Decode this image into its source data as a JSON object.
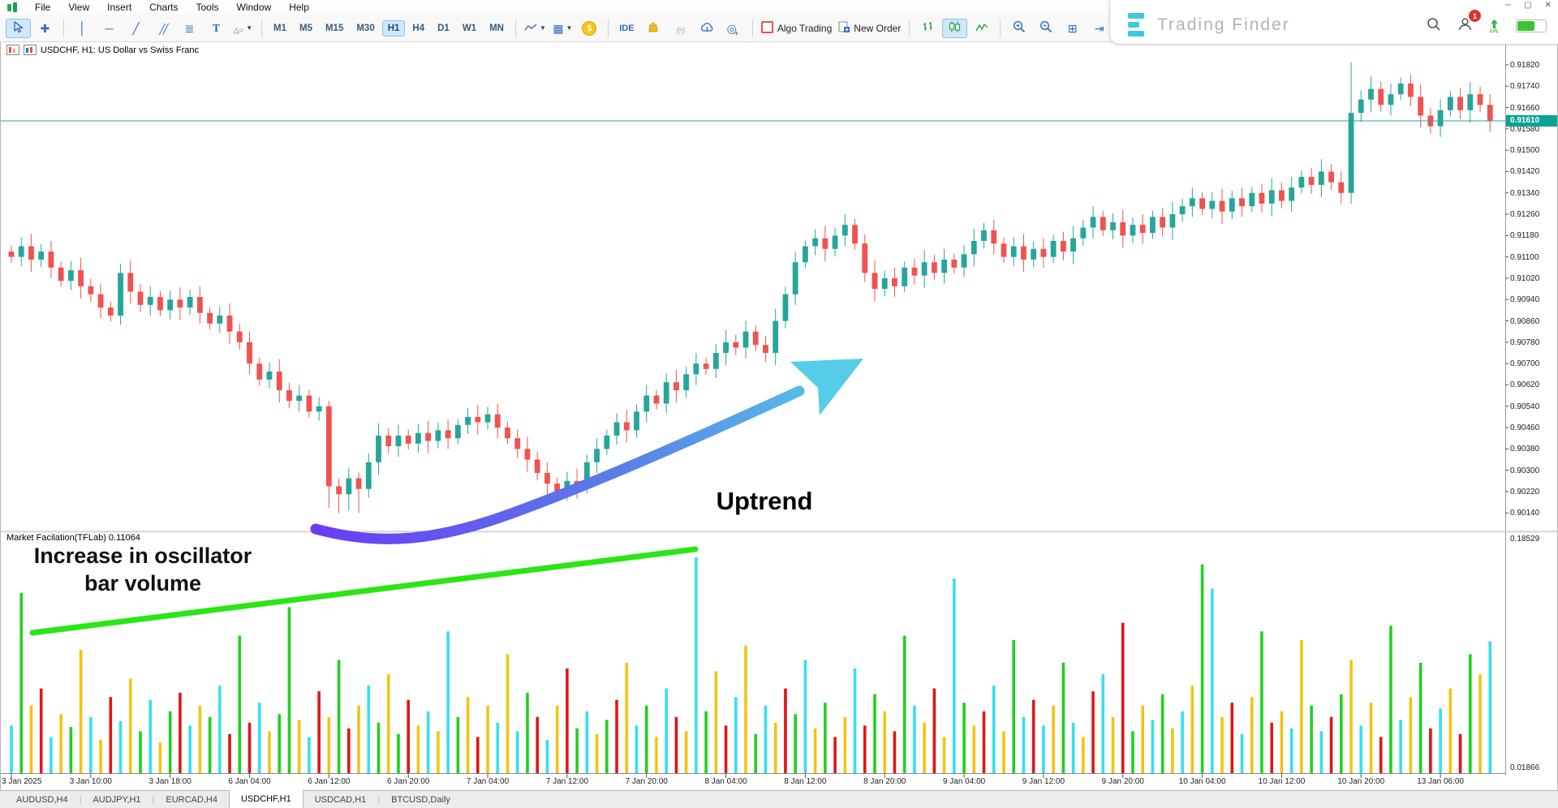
{
  "menubar": {
    "items": [
      "File",
      "View",
      "Insert",
      "Charts",
      "Tools",
      "Window",
      "Help"
    ]
  },
  "window_controls": {
    "minimize": "─",
    "restore": "▢",
    "close": "✕"
  },
  "toolbar": {
    "drawing_tools": [
      {
        "name": "cursor",
        "active": true
      },
      {
        "name": "crosshair",
        "active": false
      }
    ],
    "line_tools": [
      {
        "name": "vertical-line"
      },
      {
        "name": "horizontal-line"
      },
      {
        "name": "trendline"
      },
      {
        "name": "equidistant-channel"
      },
      {
        "name": "fibonacci"
      },
      {
        "name": "text-label"
      },
      {
        "name": "shapes",
        "dropdown": true
      }
    ],
    "timeframes": [
      {
        "label": "M1"
      },
      {
        "label": "M5"
      },
      {
        "label": "M15"
      },
      {
        "label": "M30"
      },
      {
        "label": "H1",
        "active": true
      },
      {
        "label": "H4"
      },
      {
        "label": "D1"
      },
      {
        "label": "W1"
      },
      {
        "label": "MN"
      }
    ],
    "indicator_buttons": [
      {
        "name": "indicators-line",
        "dropdown": true
      },
      {
        "name": "indicator-window",
        "dropdown": true
      },
      {
        "name": "payments"
      }
    ],
    "service_buttons": [
      {
        "name": "ide",
        "label": "IDE"
      },
      {
        "name": "market"
      },
      {
        "name": "signals"
      },
      {
        "name": "cloud"
      },
      {
        "name": "community"
      }
    ],
    "trade_buttons": [
      {
        "name": "algo-trading",
        "label": "Algo Trading"
      },
      {
        "name": "new-order",
        "label": "New Order"
      }
    ],
    "chart_modes": [
      {
        "name": "bars"
      },
      {
        "name": "candles",
        "active": true
      },
      {
        "name": "line"
      }
    ],
    "view_buttons": [
      {
        "name": "zoom-in"
      },
      {
        "name": "zoom-out"
      },
      {
        "name": "tile-windows"
      },
      {
        "name": "shift-end"
      }
    ]
  },
  "overlay": {
    "brand_name": "Trading Finder",
    "notification_count": "1",
    "level_label": "LVL"
  },
  "chart": {
    "title": "USDCHF, H1:  US Dollar vs Swiss Franc",
    "current_price_label": "0.91610",
    "price_scale": [
      "0.91820",
      "0.91740",
      "0.91660",
      "0.91580",
      "0.91500",
      "0.91420",
      "0.91340",
      "0.91260",
      "0.91180",
      "0.91100",
      "0.91020",
      "0.90940",
      "0.90860",
      "0.90780",
      "0.90700",
      "0.90620",
      "0.90540",
      "0.90460",
      "0.90380",
      "0.90300",
      "0.90220",
      "0.90140"
    ],
    "indicator_label": "Market Facilation(TFLab) 0.11064",
    "osc_max": "0.18529",
    "osc_min": "0.01866"
  },
  "annotations": {
    "uptrend": "Uptrend",
    "increase_line1": "Increase in oscillator",
    "increase_line2": "bar volume",
    "trendline_color": "#2be615",
    "arrow_start_color": "#6a3cf5",
    "arrow_end_color": "#55cde8"
  },
  "tabs": [
    {
      "label": "AUDUSD,H4",
      "active": false
    },
    {
      "label": "AUDJPY,H1",
      "active": false
    },
    {
      "label": "EURCAD,H4",
      "active": false
    },
    {
      "label": "USDCHF,H1",
      "active": true
    },
    {
      "label": "USDCAD,H1",
      "active": false
    },
    {
      "label": "BTCUSD,Daily",
      "active": false
    }
  ],
  "chart_data": {
    "type": "candlestick",
    "title": "USDCHF, H1: US Dollar vs Swiss Franc",
    "symbol": "USDCHF",
    "timeframe": "H1",
    "ylim": [
      0.9008,
      0.91896
    ],
    "up_color": "#26a69a",
    "down_color": "#ef5350",
    "current_price": 0.9161,
    "first_open": 0.9112,
    "closes": [
      0.911,
      0.9114,
      0.9109,
      0.9112,
      0.9106,
      0.9101,
      0.9105,
      0.9099,
      0.9096,
      0.9091,
      0.9088,
      0.9104,
      0.9097,
      0.9092,
      0.9095,
      0.909,
      0.9094,
      0.9091,
      0.9095,
      0.9089,
      0.9085,
      0.9088,
      0.9082,
      0.9078,
      0.907,
      0.9064,
      0.9067,
      0.906,
      0.9056,
      0.9058,
      0.9052,
      0.9054,
      0.9024,
      0.9021,
      0.9027,
      0.9023,
      0.9033,
      0.9043,
      0.9039,
      0.9043,
      0.904,
      0.9044,
      0.9041,
      0.9045,
      0.9042,
      0.9047,
      0.905,
      0.9048,
      0.9051,
      0.9046,
      0.9042,
      0.9038,
      0.9034,
      0.9029,
      0.9025,
      0.9022,
      0.9026,
      0.9024,
      0.9033,
      0.9038,
      0.9043,
      0.9048,
      0.9045,
      0.9052,
      0.9058,
      0.9055,
      0.9063,
      0.906,
      0.9066,
      0.907,
      0.9068,
      0.9074,
      0.9078,
      0.9076,
      0.9082,
      0.9077,
      0.9074,
      0.9086,
      0.9096,
      0.9108,
      0.9114,
      0.9117,
      0.9113,
      0.9118,
      0.9122,
      0.9115,
      0.9104,
      0.9098,
      0.9102,
      0.9099,
      0.9106,
      0.9103,
      0.9108,
      0.9104,
      0.9109,
      0.9106,
      0.9111,
      0.9116,
      0.912,
      0.9115,
      0.911,
      0.9114,
      0.9109,
      0.9113,
      0.911,
      0.9116,
      0.9112,
      0.9117,
      0.9121,
      0.9125,
      0.912,
      0.9123,
      0.9118,
      0.9122,
      0.9119,
      0.9125,
      0.9121,
      0.9126,
      0.9129,
      0.9132,
      0.9128,
      0.9131,
      0.9127,
      0.9132,
      0.9129,
      0.9134,
      0.913,
      0.9135,
      0.9131,
      0.9136,
      0.914,
      0.9137,
      0.9142,
      0.9138,
      0.9134,
      0.9164,
      0.9169,
      0.9173,
      0.9167,
      0.9171,
      0.9175,
      0.917,
      0.9163,
      0.9159,
      0.9165,
      0.917,
      0.9165,
      0.9171,
      0.9167,
      0.9161
    ],
    "overrides": {
      "32": {
        "h": 0.9056,
        "l": 0.9016
      },
      "33": {
        "l": 0.9014
      },
      "34": {
        "l": 0.9015
      },
      "35": {
        "l": 0.9014
      },
      "54": {
        "l": 0.902
      },
      "55": {
        "l": 0.9019
      },
      "135": {
        "h": 0.9183,
        "l": 0.913
      }
    },
    "x_labels": [
      "3 Jan 2025",
      "3 Jan 10:00",
      "3 Jan 18:00",
      "6 Jan 04:00",
      "6 Jan 12:00",
      "6 Jan 20:00",
      "7 Jan 04:00",
      "7 Jan 12:00",
      "7 Jan 20:00",
      "8 Jan 04:00",
      "8 Jan 12:00",
      "8 Jan 20:00",
      "9 Jan 04:00",
      "9 Jan 12:00",
      "9 Jan 20:00",
      "10 Jan 04:00",
      "10 Jan 12:00",
      "10 Jan 20:00",
      "13 Jan 06:00"
    ],
    "oscillator": {
      "type": "bar",
      "name": "Market Facilation(TFLab)",
      "current": 0.11064,
      "ylim": [
        0.01866,
        0.18529
      ],
      "palette": {
        "c": "#35dff2",
        "y": "#f2c411",
        "g": "#1fd11f",
        "r": "#e11515"
      },
      "values": [
        0.052,
        0.145,
        0.066,
        0.078,
        0.044,
        0.06,
        0.051,
        0.105,
        0.058,
        0.042,
        0.072,
        0.055,
        0.085,
        0.048,
        0.07,
        0.04,
        0.062,
        0.075,
        0.052,
        0.066,
        0.058,
        0.08,
        0.046,
        0.115,
        0.054,
        0.068,
        0.048,
        0.06,
        0.135,
        0.056,
        0.044,
        0.076,
        0.058,
        0.098,
        0.05,
        0.066,
        0.08,
        0.054,
        0.088,
        0.046,
        0.07,
        0.052,
        0.062,
        0.048,
        0.118,
        0.058,
        0.072,
        0.044,
        0.066,
        0.054,
        0.102,
        0.048,
        0.075,
        0.058,
        0.042,
        0.066,
        0.092,
        0.05,
        0.062,
        0.046,
        0.056,
        0.07,
        0.096,
        0.052,
        0.066,
        0.044,
        0.078,
        0.058,
        0.048,
        0.17,
        0.062,
        0.09,
        0.052,
        0.072,
        0.108,
        0.046,
        0.066,
        0.054,
        0.078,
        0.06,
        0.098,
        0.05,
        0.068,
        0.044,
        0.058,
        0.092,
        0.052,
        0.074,
        0.062,
        0.048,
        0.115,
        0.066,
        0.054,
        0.078,
        0.044,
        0.155,
        0.068,
        0.052,
        0.062,
        0.08,
        0.048,
        0.112,
        0.058,
        0.07,
        0.052,
        0.066,
        0.096,
        0.054,
        0.044,
        0.076,
        0.088,
        0.058,
        0.124,
        0.048,
        0.066,
        0.056,
        0.074,
        0.05,
        0.062,
        0.08,
        0.165,
        0.148,
        0.058,
        0.068,
        0.046,
        0.072,
        0.118,
        0.054,
        0.062,
        0.05,
        0.112,
        0.066,
        0.048,
        0.058,
        0.074,
        0.098,
        0.052,
        0.068,
        0.044,
        0.122,
        0.056,
        0.072,
        0.096,
        0.05,
        0.064,
        0.078,
        0.046,
        0.102,
        0.088,
        0.111
      ],
      "color_rows": [
        "cgyrcygycy",
        "rcygcygrcy",
        "gcrgrcyggy",
        "crygrycgyg",
        "rycycgyryc",
        "ycgrcyrgcy",
        "grycgycryc",
        "gyrcygcyrg",
        "cygrycrgyr",
        "gcyrycgyrc",
        "ygcrcygcyr",
        "cyrgycgycy",
        "gcyrcygryc",
        "ygcrgycyrg",
        "cygrcyrgyc"
      ]
    }
  }
}
